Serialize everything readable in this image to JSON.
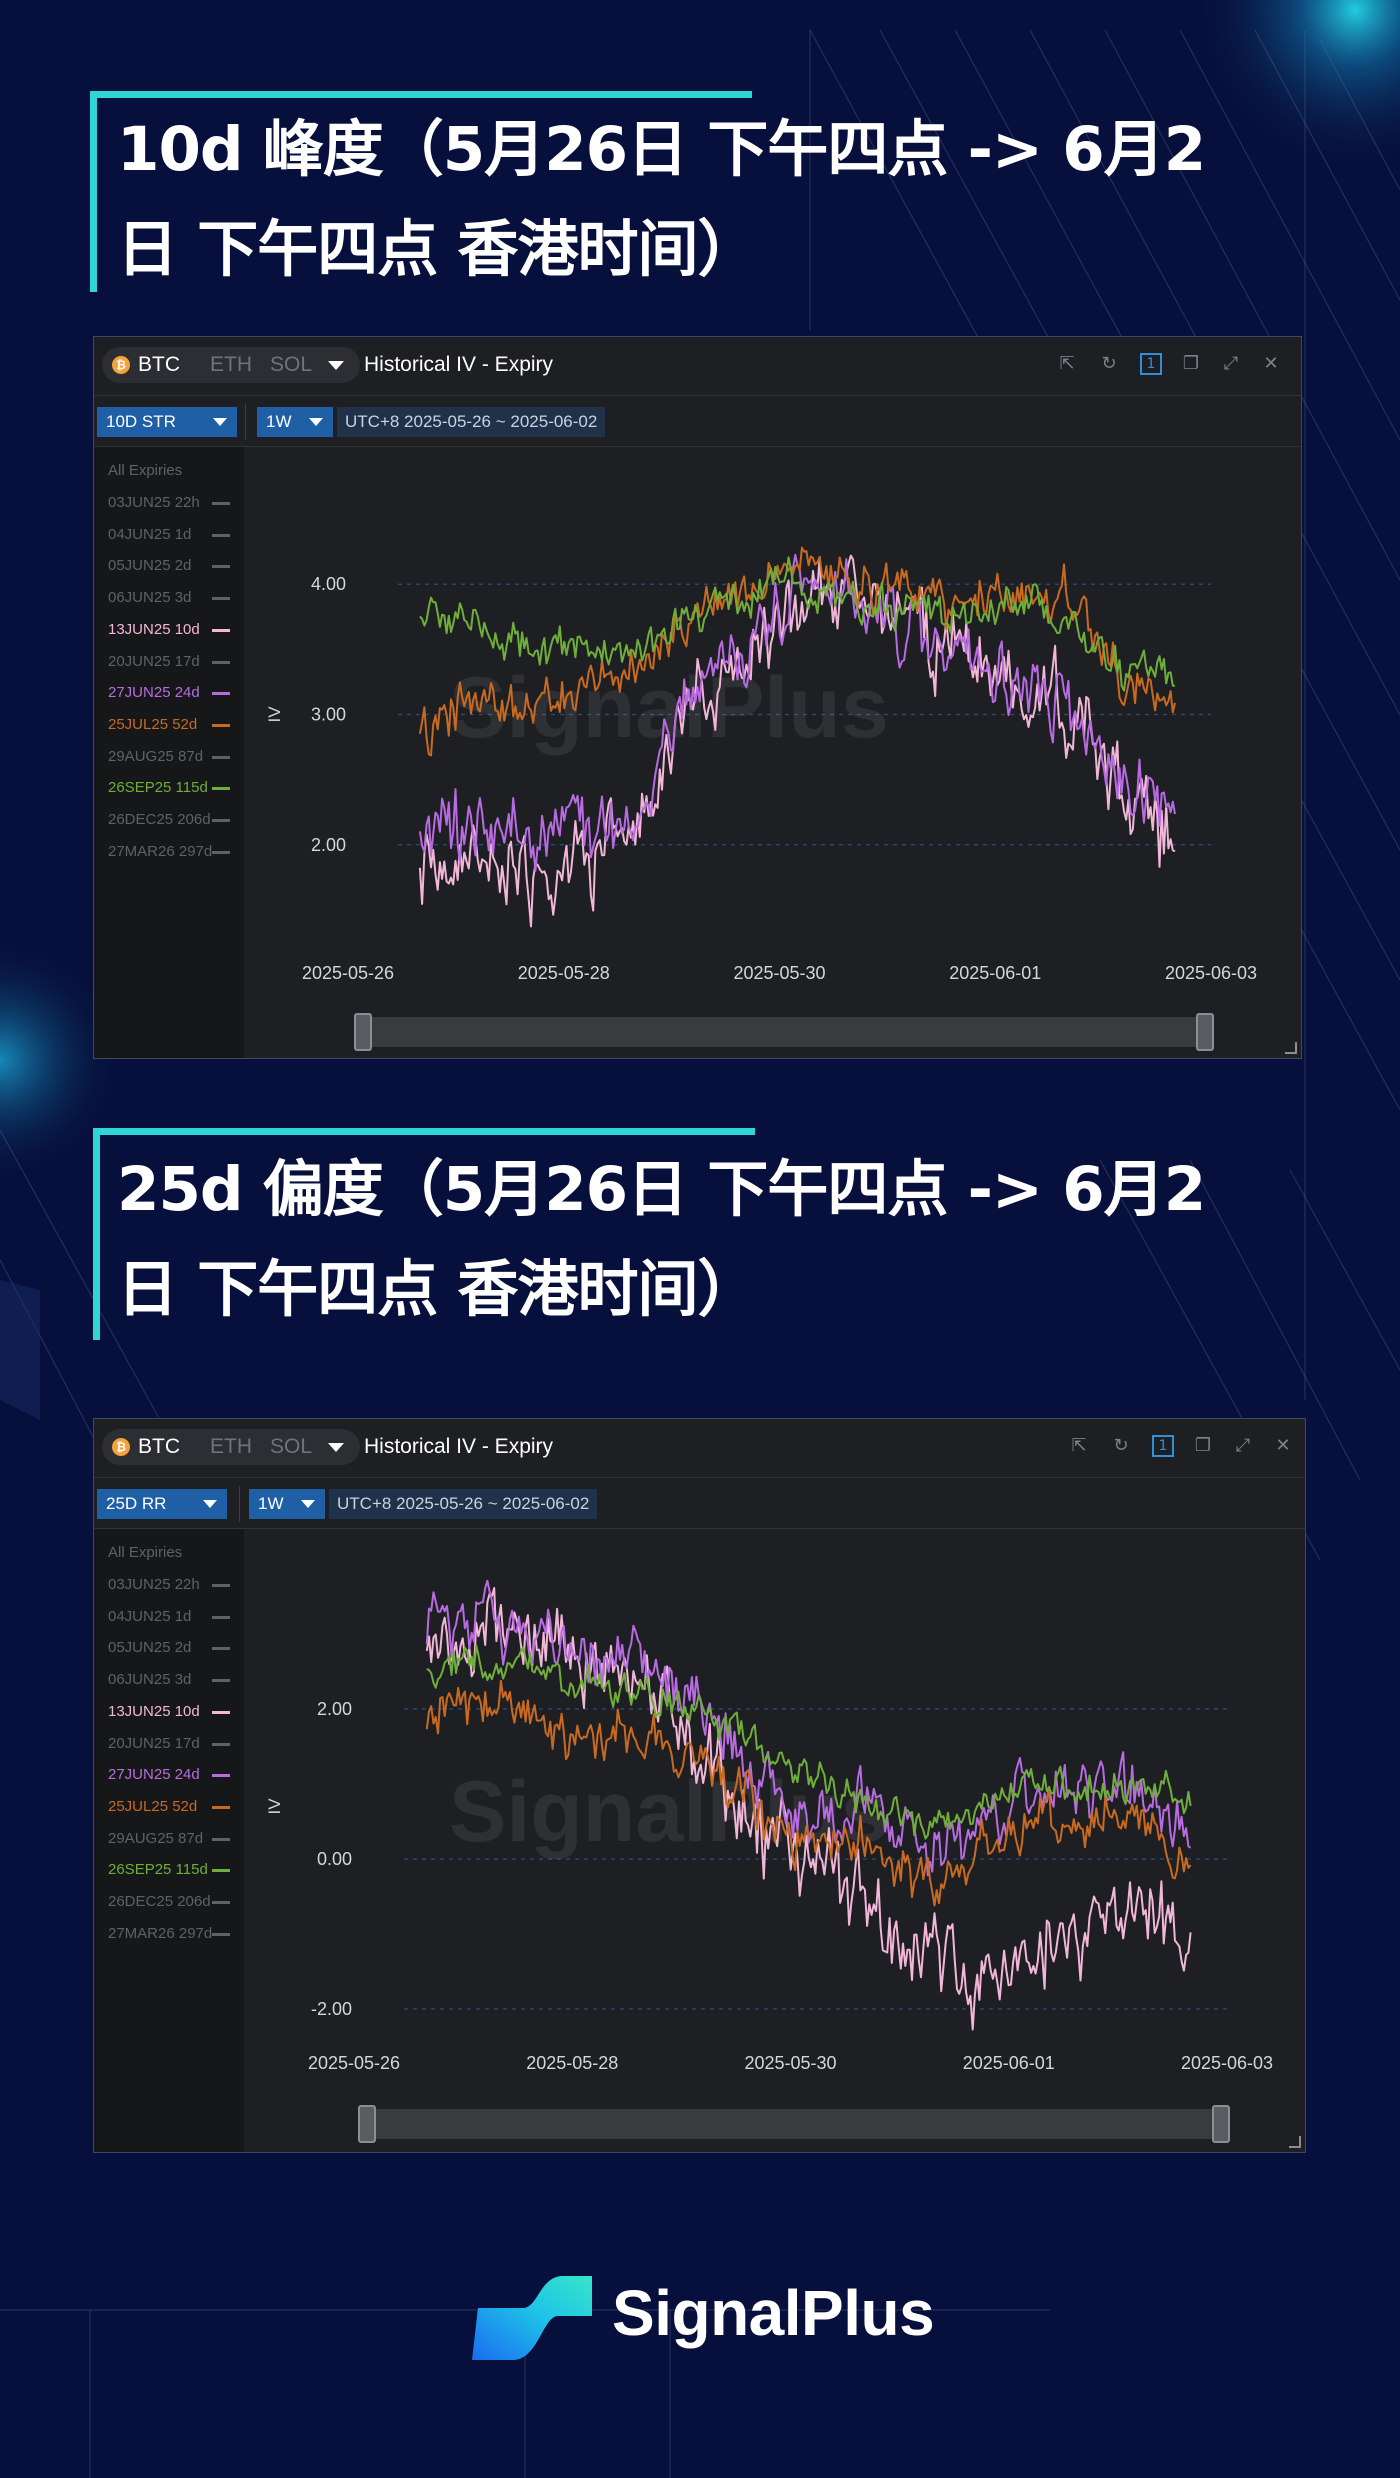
{
  "section1": {
    "title_line1": "10d 峰度（5月26日 下午四点 -> 6月2",
    "title_line2": "日 下午四点 香港时间）"
  },
  "section2": {
    "title_line1": "25d 偏度（5月26日 下午四点 -> 6月2",
    "title_line2": "日 下午四点 香港时间）"
  },
  "panel_common": {
    "assets": [
      "BTC",
      "ETH",
      "SOL"
    ],
    "active_asset": "BTC",
    "coin_icon": "bitcoin-icon",
    "title": "Historical IV - Expiry",
    "period": "1W",
    "date_range": "UTC+8 2025-05-26 ~ 2025-06-02",
    "window_icons": [
      "external-link-icon",
      "refresh-icon",
      "single-view-icon",
      "duplicate-icon",
      "expand-icon",
      "close-icon"
    ],
    "single_view_label": "1",
    "legend_header": "All Expiries",
    "expiries": [
      {
        "label": "03JUN25 22h",
        "active": false
      },
      {
        "label": "04JUN25 1d",
        "active": false
      },
      {
        "label": "05JUN25 2d",
        "active": false
      },
      {
        "label": "06JUN25 3d",
        "active": false
      },
      {
        "label": "13JUN25 10d",
        "active": true,
        "color": "#f2b6d8"
      },
      {
        "label": "20JUN25 17d",
        "active": false
      },
      {
        "label": "27JUN25 24d",
        "active": true,
        "color": "#b86be0"
      },
      {
        "label": "25JUL25 52d",
        "active": true,
        "color": "#c86a20"
      },
      {
        "label": "29AUG25 87d",
        "active": false
      },
      {
        "label": "26SEP25 115d",
        "active": true,
        "color": "#6fae3a"
      },
      {
        "label": "26DEC25 206d",
        "active": false
      },
      {
        "label": "27MAR26 297d",
        "active": false
      }
    ],
    "watermark": "SignalPlus",
    "ylabel": "IV"
  },
  "panel1": {
    "metric": "10D STR"
  },
  "panel2": {
    "metric": "25D RR"
  },
  "brand": {
    "name": "SignalPlus",
    "logo_icon": "signalplus-logo-icon"
  },
  "colors": {
    "background": "#07103c",
    "accent": "#2ed6d6",
    "panel": "#1e1f22"
  },
  "chart_data": [
    {
      "type": "line",
      "title": "Historical IV - Expiry",
      "metric": "10D STR",
      "ylabel": "IV",
      "x_ticks": [
        "2025-05-26",
        "2025-05-28",
        "2025-05-30",
        "2025-06-01",
        "2025-06-03"
      ],
      "x": [
        "2025-05-26 16:00",
        "2025-05-27 04:00",
        "2025-05-27 16:00",
        "2025-05-28 04:00",
        "2025-05-28 16:00",
        "2025-05-29 04:00",
        "2025-05-29 16:00",
        "2025-05-30 04:00",
        "2025-05-30 16:00",
        "2025-05-31 04:00",
        "2025-05-31 16:00",
        "2025-06-01 04:00",
        "2025-06-01 16:00",
        "2025-06-02 04:00",
        "2025-06-02 16:00"
      ],
      "y_ticks": [
        2.0,
        3.0,
        4.0
      ],
      "ylim": [
        1.1,
        4.9
      ],
      "grid": true,
      "series": [
        {
          "name": "13JUN25 10d",
          "color": "#f2b6d8",
          "values": [
            1.9,
            1.85,
            1.7,
            1.85,
            1.95,
            3.2,
            3.35,
            3.95,
            3.95,
            3.75,
            3.45,
            3.25,
            3.0,
            2.45,
            2.0
          ]
        },
        {
          "name": "27JUN25 24d",
          "color": "#b86be0",
          "values": [
            2.15,
            2.15,
            2.05,
            2.15,
            2.15,
            3.25,
            3.4,
            4.0,
            3.9,
            3.7,
            3.45,
            3.2,
            3.0,
            2.45,
            2.3
          ]
        },
        {
          "name": "25JUL25 52d",
          "color": "#c86a20",
          "values": [
            2.8,
            3.15,
            3.0,
            3.15,
            3.35,
            3.7,
            3.95,
            4.15,
            4.0,
            3.95,
            3.85,
            3.9,
            3.9,
            3.3,
            3.1
          ]
        },
        {
          "name": "26SEP25 115d",
          "color": "#6fae3a",
          "values": [
            3.8,
            3.65,
            3.5,
            3.5,
            3.45,
            3.8,
            3.9,
            4.05,
            3.9,
            3.8,
            3.75,
            3.85,
            3.75,
            3.3,
            3.3
          ]
        }
      ]
    },
    {
      "type": "line",
      "title": "Historical IV - Expiry",
      "metric": "25D RR",
      "ylabel": "IV",
      "x_ticks": [
        "2025-05-26",
        "2025-05-28",
        "2025-05-30",
        "2025-06-01",
        "2025-06-03"
      ],
      "x": [
        "2025-05-26 16:00",
        "2025-05-27 04:00",
        "2025-05-27 16:00",
        "2025-05-28 04:00",
        "2025-05-28 16:00",
        "2025-05-29 04:00",
        "2025-05-29 16:00",
        "2025-05-30 04:00",
        "2025-05-30 16:00",
        "2025-05-31 04:00",
        "2025-05-31 16:00",
        "2025-06-01 04:00",
        "2025-06-01 16:00",
        "2025-06-02 04:00",
        "2025-06-02 16:00"
      ],
      "y_ticks": [
        -2.0,
        0.0,
        2.0
      ],
      "ylim": [
        -2.6,
        4.0
      ],
      "grid": true,
      "series": [
        {
          "name": "13JUN25 10d",
          "color": "#f2b6d8",
          "values": [
            2.7,
            3.0,
            2.9,
            2.6,
            2.5,
            1.6,
            0.4,
            -0.1,
            -0.6,
            -1.3,
            -1.7,
            -1.3,
            -1.0,
            -0.5,
            -1.0
          ]
        },
        {
          "name": "27JUN25 24d",
          "color": "#b86be0",
          "values": [
            2.9,
            3.2,
            2.8,
            2.7,
            2.6,
            2.1,
            1.2,
            0.4,
            0.8,
            0.0,
            0.2,
            0.9,
            0.9,
            1.0,
            0.3
          ]
        },
        {
          "name": "25JUL25 52d",
          "color": "#c86a20",
          "values": [
            1.9,
            2.1,
            1.8,
            1.7,
            1.6,
            1.4,
            0.7,
            0.1,
            0.3,
            -0.4,
            0.1,
            0.4,
            0.5,
            0.6,
            0.0
          ]
        },
        {
          "name": "26SEP25 115d",
          "color": "#6fae3a",
          "values": [
            2.6,
            2.7,
            2.5,
            2.3,
            2.2,
            2.0,
            1.5,
            1.0,
            0.8,
            0.5,
            0.6,
            1.0,
            0.9,
            1.0,
            0.8
          ]
        }
      ]
    }
  ]
}
